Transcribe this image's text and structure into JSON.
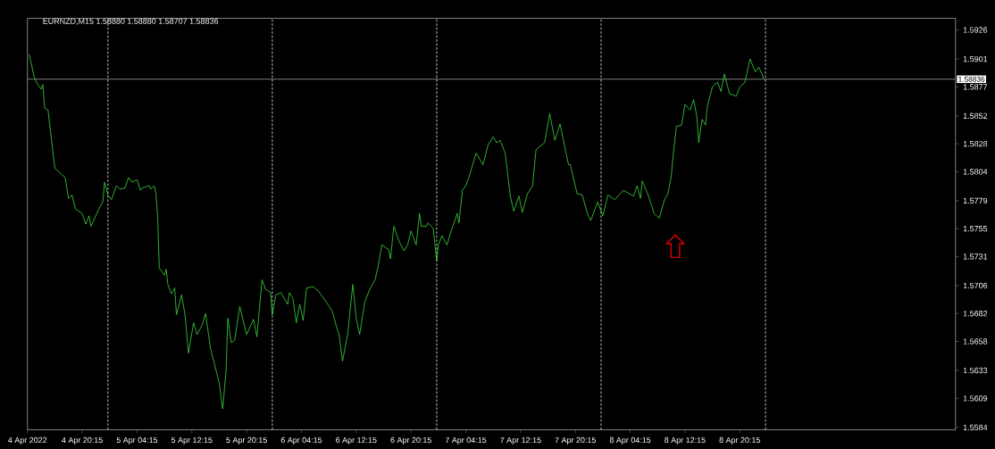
{
  "chart_data": {
    "type": "line",
    "title": "EURNZD,M15  1.58880 1.58880 1.58707 1.58836",
    "x": [
      "2022-04-04T12:30",
      "2022-04-04T13:15",
      "2022-04-04T13:45",
      "2022-04-04T14:15",
      "2022-04-04T14:30",
      "2022-04-04T14:45",
      "2022-04-04T15:15",
      "2022-04-04T16:15",
      "2022-04-04T17:00",
      "2022-04-04T17:45",
      "2022-04-04T18:15",
      "2022-04-04T18:45",
      "2022-04-04T19:15",
      "2022-04-04T20:15",
      "2022-04-04T20:45",
      "2022-04-04T21:15",
      "2022-04-04T21:30",
      "2022-04-04T22:00",
      "2022-04-04T22:45",
      "2022-04-04T23:15",
      "2022-04-04T23:30",
      "2022-04-05T00:00",
      "2022-04-05T00:30",
      "2022-04-05T01:15",
      "2022-04-05T01:45",
      "2022-04-05T02:30",
      "2022-04-05T03:00",
      "2022-04-05T03:30",
      "2022-04-05T04:15",
      "2022-04-05T04:45",
      "2022-04-05T05:00",
      "2022-04-05T06:00",
      "2022-04-05T06:15",
      "2022-04-05T06:45",
      "2022-04-05T07:00",
      "2022-04-05T07:15",
      "2022-04-05T07:30",
      "2022-04-05T08:15",
      "2022-04-05T08:30",
      "2022-04-05T08:45",
      "2022-04-05T09:15",
      "2022-04-05T09:45",
      "2022-04-05T10:00",
      "2022-04-05T10:45",
      "2022-04-05T11:15",
      "2022-04-05T11:45",
      "2022-04-05T12:30",
      "2022-04-05T13:00",
      "2022-04-05T13:45",
      "2022-04-05T14:15",
      "2022-04-05T15:00",
      "2022-04-05T15:30",
      "2022-04-05T16:15",
      "2022-04-05T16:45",
      "2022-04-05T17:15",
      "2022-04-05T17:30",
      "2022-04-05T18:00",
      "2022-04-05T18:30",
      "2022-04-05T19:15",
      "2022-04-05T20:15",
      "2022-04-05T21:15",
      "2022-04-05T21:45",
      "2022-04-05T22:30",
      "2022-04-05T23:00",
      "2022-04-05T23:45",
      "2022-04-06T00:00",
      "2022-04-06T00:30",
      "2022-04-06T01:15",
      "2022-04-06T02:15",
      "2022-04-06T02:30",
      "2022-04-06T03:00",
      "2022-04-06T03:30",
      "2022-04-06T04:00",
      "2022-04-06T04:30",
      "2022-04-06T05:00",
      "2022-04-06T06:00",
      "2022-04-06T06:45",
      "2022-04-06T07:45",
      "2022-04-06T08:45",
      "2022-04-06T09:30",
      "2022-04-06T09:45",
      "2022-04-06T10:15",
      "2022-04-06T11:00",
      "2022-04-06T11:45",
      "2022-04-06T12:15",
      "2022-04-06T12:45",
      "2022-04-06T13:30",
      "2022-04-06T14:15",
      "2022-04-06T15:00",
      "2022-04-06T15:30",
      "2022-04-06T16:00",
      "2022-04-06T17:00",
      "2022-04-06T17:15",
      "2022-04-06T17:45",
      "2022-04-06T18:30",
      "2022-04-06T19:15",
      "2022-04-06T19:45",
      "2022-04-06T20:15",
      "2022-04-06T21:00",
      "2022-04-06T21:30",
      "2022-04-06T21:45",
      "2022-04-06T22:30",
      "2022-04-06T22:45",
      "2022-04-06T23:30",
      "2022-04-07T00:00",
      "2022-04-07T00:15",
      "2022-04-07T00:45",
      "2022-04-07T01:30",
      "2022-04-07T02:00",
      "2022-04-07T03:00",
      "2022-04-07T03:15",
      "2022-04-07T03:45",
      "2022-04-07T04:15",
      "2022-04-07T04:45",
      "2022-04-07T05:45",
      "2022-04-07T06:45",
      "2022-04-07T07:30",
      "2022-04-07T08:15",
      "2022-04-07T08:45",
      "2022-04-07T09:15",
      "2022-04-07T10:00",
      "2022-04-07T10:45",
      "2022-04-07T11:15",
      "2022-04-07T12:00",
      "2022-04-07T12:30",
      "2022-04-07T13:15",
      "2022-04-07T14:00",
      "2022-04-07T14:30",
      "2022-04-07T15:45",
      "2022-04-07T16:30",
      "2022-04-07T17:15",
      "2022-04-07T18:00",
      "2022-04-07T19:15",
      "2022-04-07T19:30",
      "2022-04-07T20:30",
      "2022-04-07T21:15",
      "2022-04-07T22:00",
      "2022-04-07T22:30",
      "2022-04-07T23:30",
      "2022-04-08T00:15",
      "2022-04-08T01:00",
      "2022-04-08T02:00",
      "2022-04-08T03:15",
      "2022-04-08T04:45",
      "2022-04-08T05:15",
      "2022-04-08T05:45",
      "2022-04-08T06:00",
      "2022-04-08T06:45",
      "2022-04-08T07:45",
      "2022-04-08T08:30",
      "2022-04-08T09:15",
      "2022-04-08T09:45",
      "2022-04-08T10:15",
      "2022-04-08T10:30",
      "2022-04-08T11:00",
      "2022-04-08T11:45",
      "2022-04-08T12:15",
      "2022-04-08T13:00",
      "2022-04-08T13:30",
      "2022-04-08T14:00",
      "2022-04-08T14:15",
      "2022-04-08T14:45",
      "2022-04-08T15:15",
      "2022-04-08T15:30",
      "2022-04-08T16:15",
      "2022-04-08T17:00",
      "2022-04-08T17:30",
      "2022-04-08T18:00",
      "2022-04-08T18:45",
      "2022-04-08T19:45",
      "2022-04-08T20:15",
      "2022-04-08T21:00",
      "2022-04-08T21:45",
      "2022-04-08T22:30",
      "2022-04-08T23:00",
      "2022-04-08T23:30",
      "2022-04-08T23:45"
    ],
    "series": [
      {
        "color": "#40e040",
        "values": [
          1.5905,
          1.5885,
          1.5879,
          1.5875,
          1.5879,
          1.5859,
          1.5857,
          1.5807,
          1.5803,
          1.5799,
          1.5781,
          1.5784,
          1.5772,
          1.5768,
          1.5759,
          1.5766,
          1.5757,
          1.5763,
          1.5773,
          1.5778,
          1.5795,
          1.5784,
          1.578,
          1.5792,
          1.5789,
          1.579,
          1.5799,
          1.5795,
          1.5797,
          1.5788,
          1.579,
          1.5792,
          1.5789,
          1.5792,
          1.5786,
          1.5766,
          1.5721,
          1.5715,
          1.572,
          1.5707,
          1.5699,
          1.5704,
          1.5681,
          1.5698,
          1.5681,
          1.5648,
          1.5674,
          1.5664,
          1.5672,
          1.5682,
          1.5651,
          1.564,
          1.5622,
          1.56,
          1.5633,
          1.5678,
          1.5657,
          1.5659,
          1.5688,
          1.5664,
          1.5677,
          1.5662,
          1.5711,
          1.5703,
          1.57,
          1.5681,
          1.5698,
          1.57,
          1.569,
          1.57,
          1.5695,
          1.5674,
          1.569,
          1.5676,
          1.5704,
          1.5705,
          1.5701,
          1.5693,
          1.5684,
          1.5668,
          1.5664,
          1.5641,
          1.5664,
          1.5707,
          1.5678,
          1.5664,
          1.5692,
          1.5703,
          1.5711,
          1.5724,
          1.5741,
          1.5737,
          1.5729,
          1.5757,
          1.5744,
          1.5736,
          1.5741,
          1.5753,
          1.5741,
          1.5768,
          1.5757,
          1.5757,
          1.576,
          1.5755,
          1.5727,
          1.5741,
          1.5749,
          1.5741,
          1.5751,
          1.5768,
          1.576,
          1.5788,
          1.5792,
          1.58,
          1.582,
          1.581,
          1.5827,
          1.5834,
          1.5829,
          1.5831,
          1.582,
          1.5783,
          1.577,
          1.5783,
          1.5769,
          1.5785,
          1.5792,
          1.5823,
          1.5829,
          1.5854,
          1.5831,
          1.5845,
          1.581,
          1.581,
          1.5785,
          1.5784,
          1.5768,
          1.5762,
          1.5778,
          1.5766,
          1.5784,
          1.578,
          1.5788,
          1.5783,
          1.5792,
          1.5781,
          1.5796,
          1.5786,
          1.5768,
          1.5764,
          1.578,
          1.5785,
          1.58,
          1.5817,
          1.5843,
          1.5844,
          1.5862,
          1.5857,
          1.5866,
          1.5851,
          1.5829,
          1.5849,
          1.5844,
          1.586,
          1.5877,
          1.5881,
          1.5873,
          1.5888,
          1.5871,
          1.5869,
          1.5877,
          1.5881,
          1.5901,
          1.589,
          1.5894,
          1.5888,
          1.5884
        ]
      }
    ],
    "xlim": [
      "2022-04-04T12:15",
      "2022-04-10T03:45"
    ],
    "xticks": [
      {
        "value": "2022-04-04T12:15",
        "label": "4 Apr 2022"
      },
      {
        "value": "2022-04-04T20:15",
        "label": "4 Apr 20:15"
      },
      {
        "value": "2022-04-05T04:15",
        "label": "5 Apr 04:15"
      },
      {
        "value": "2022-04-05T12:15",
        "label": "5 Apr 12:15"
      },
      {
        "value": "2022-04-05T20:15",
        "label": "5 Apr 20:15"
      },
      {
        "value": "2022-04-06T04:15",
        "label": "6 Apr 04:15"
      },
      {
        "value": "2022-04-06T12:15",
        "label": "6 Apr 12:15"
      },
      {
        "value": "2022-04-06T20:15",
        "label": "6 Apr 20:15"
      },
      {
        "value": "2022-04-07T04:15",
        "label": "7 Apr 04:15"
      },
      {
        "value": "2022-04-07T12:15",
        "label": "7 Apr 12:15"
      },
      {
        "value": "2022-04-07T20:15",
        "label": "7 Apr 20:15"
      },
      {
        "value": "2022-04-08T04:15",
        "label": "8 Apr 04:15"
      },
      {
        "value": "2022-04-08T12:15",
        "label": "8 Apr 12:15"
      },
      {
        "value": "2022-04-08T20:15",
        "label": "8 Apr 20:15"
      }
    ],
    "ylim": [
      1.5582,
      1.5936
    ],
    "yticks": [
      1.5584,
      1.5609,
      1.5633,
      1.5658,
      1.5682,
      1.5706,
      1.5731,
      1.5755,
      1.5779,
      1.5804,
      1.5828,
      1.5852,
      1.5877,
      1.5901,
      1.5926
    ],
    "ref_lines": [
      {
        "axis": "y",
        "value": 1.58836,
        "label": "1.58836",
        "color": "#a0a0a0",
        "line_style": "solid"
      },
      {
        "axis": "x",
        "value": "2022-04-05T00:00",
        "color": "#ffffff",
        "line_style": "dashed"
      },
      {
        "axis": "x",
        "value": "2022-04-06T00:00",
        "color": "#ffffff",
        "line_style": "dashed"
      },
      {
        "axis": "x",
        "value": "2022-04-07T00:00",
        "color": "#ffffff",
        "line_style": "dashed"
      },
      {
        "axis": "x",
        "value": "2022-04-08T00:00",
        "color": "#ffffff",
        "line_style": "dashed"
      },
      {
        "axis": "x",
        "value": "2022-04-09T00:00",
        "color": "#ffffff",
        "line_style": "dashed"
      }
    ]
  }
}
